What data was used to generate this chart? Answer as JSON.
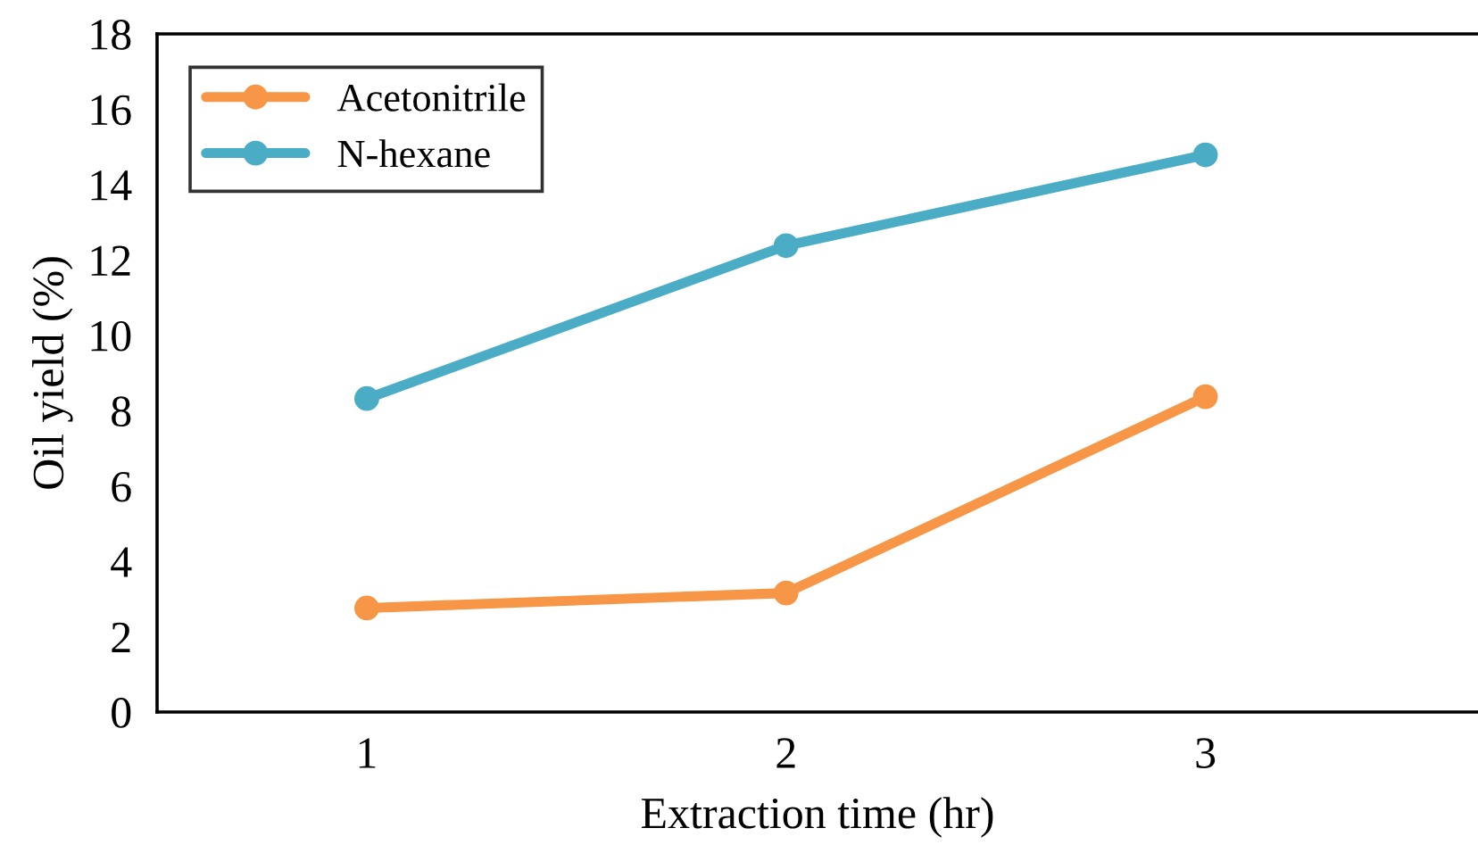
{
  "chart_data": {
    "type": "line",
    "xlabel": "Extraction time (hr)",
    "ylabel": "Oil yield (%)",
    "x": [
      1,
      2,
      3
    ],
    "xlim": [
      0.5,
      3.65
    ],
    "xticks": [
      1,
      2,
      3
    ],
    "series": [
      {
        "name": "Acetonitrile",
        "color": "#f79646",
        "values": [
          2.76,
          3.16,
          8.37
        ]
      },
      {
        "name": "N-hexane",
        "color": "#4bacc6",
        "values": [
          8.32,
          12.38,
          14.79
        ]
      }
    ],
    "ylim": [
      0,
      18
    ],
    "yticks": [
      0,
      2,
      4,
      6,
      8,
      10,
      12,
      14,
      16,
      18
    ],
    "grid": false,
    "legend": "top left",
    "marker": "circle",
    "line_style": "solid"
  }
}
